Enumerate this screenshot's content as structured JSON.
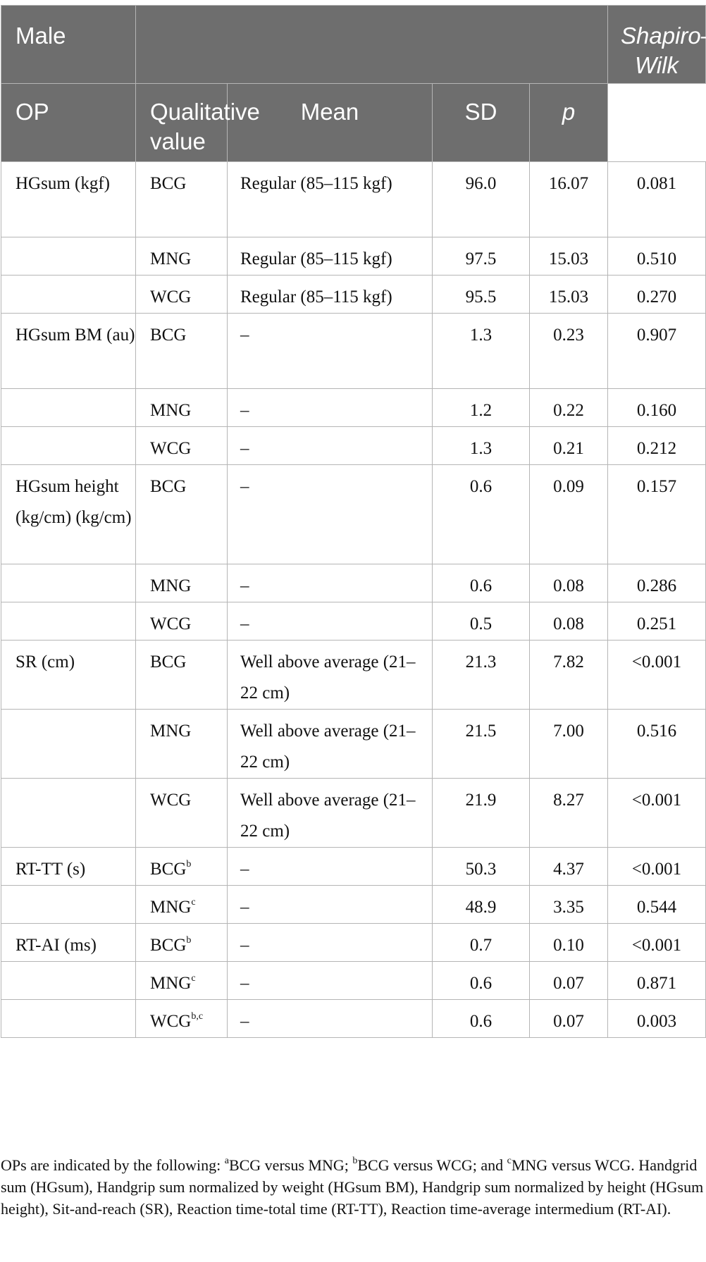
{
  "header": {
    "col_group": "Male",
    "shapiro": "Shapiro–Wilk",
    "op": "OP",
    "qualitative": "Qualitative value",
    "mean": "Mean",
    "sd": "SD",
    "p": "p"
  },
  "rows": [
    {
      "variable": "HGsum (kgf)",
      "op": "BCG",
      "op_sup": "",
      "qual": "Regular (85–115 kgf)",
      "mean": "96.0",
      "sd": "16.07",
      "p": "0.081"
    },
    {
      "variable": "",
      "op": "MNG",
      "op_sup": "",
      "qual": "Regular (85–115 kgf)",
      "mean": "97.5",
      "sd": "15.03",
      "p": "0.510"
    },
    {
      "variable": "",
      "op": "WCG",
      "op_sup": "",
      "qual": "Regular (85–115 kgf)",
      "mean": "95.5",
      "sd": "15.03",
      "p": "0.270"
    },
    {
      "variable": "HGsum BM (au)",
      "op": "BCG",
      "op_sup": "",
      "qual": "–",
      "mean": "1.3",
      "sd": "0.23",
      "p": "0.907"
    },
    {
      "variable": "",
      "op": "MNG",
      "op_sup": "",
      "qual": "–",
      "mean": "1.2",
      "sd": "0.22",
      "p": "0.160"
    },
    {
      "variable": "",
      "op": "WCG",
      "op_sup": "",
      "qual": "–",
      "mean": "1.3",
      "sd": "0.21",
      "p": "0.212"
    },
    {
      "variable": "HGsum height (kg/cm) (kg/cm)",
      "op": "BCG",
      "op_sup": "",
      "qual": "–",
      "mean": "0.6",
      "sd": "0.09",
      "p": "0.157"
    },
    {
      "variable": "",
      "op": "MNG",
      "op_sup": "",
      "qual": "–",
      "mean": "0.6",
      "sd": "0.08",
      "p": "0.286"
    },
    {
      "variable": "",
      "op": "WCG",
      "op_sup": "",
      "qual": "–",
      "mean": "0.5",
      "sd": "0.08",
      "p": "0.251"
    },
    {
      "variable": "SR (cm)",
      "op": "BCG",
      "op_sup": "",
      "qual": "Well above average (21–22 cm)",
      "mean": "21.3",
      "sd": "7.82",
      "p": "<0.001"
    },
    {
      "variable": "",
      "op": "MNG",
      "op_sup": "",
      "qual": "Well above average (21–22 cm)",
      "mean": "21.5",
      "sd": "7.00",
      "p": "0.516"
    },
    {
      "variable": "",
      "op": "WCG",
      "op_sup": "",
      "qual": "Well above average (21–22 cm)",
      "mean": "21.9",
      "sd": "8.27",
      "p": "<0.001"
    },
    {
      "variable": "RT-TT (s)",
      "op": "BCG",
      "op_sup": "b",
      "qual": "–",
      "mean": "50.3",
      "sd": "4.37",
      "p": "<0.001"
    },
    {
      "variable": "",
      "op": "MNG",
      "op_sup": "c",
      "qual": "–",
      "mean": "48.9",
      "sd": "3.35",
      "p": "0.544"
    },
    {
      "variable": "RT-AI (ms)",
      "op": "BCG",
      "op_sup": "b",
      "qual": "–",
      "mean": "0.7",
      "sd": "0.10",
      "p": "<0.001"
    },
    {
      "variable": "",
      "op": "MNG",
      "op_sup": "c",
      "qual": "–",
      "mean": "0.6",
      "sd": "0.07",
      "p": "0.871"
    },
    {
      "variable": "",
      "op": "WCG",
      "op_sup": "b,c",
      "qual": "–",
      "mean": "0.6",
      "sd": "0.07",
      "p": "0.003"
    }
  ],
  "footnote": {
    "intro": "OPs are indicated by the following: ",
    "sup_a": "a",
    "a_text": "BCG versus MNG; ",
    "sup_b": "b",
    "b_text": "BCG versus WCG; and ",
    "sup_c": "c",
    "c_text": "MNG versus WCG. Handgrid sum (HGsum), Handgrip sum normalized by weight (HGsum BM), Handgrip sum normalized by height (HGsum height), Sit-and-reach (SR), Reaction time-total time (RT-TT), Reaction time-average intermedium (RT-AI)."
  }
}
